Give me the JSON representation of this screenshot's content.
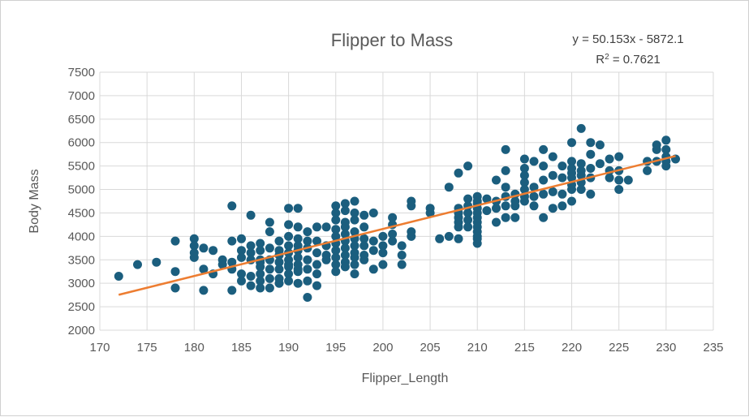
{
  "chart_data": {
    "type": "scatter",
    "title": "Flipper to Mass",
    "xlabel": "Flipper_Length",
    "ylabel": "Body Mass",
    "xlim": [
      170,
      235
    ],
    "ylim": [
      2000,
      7500
    ],
    "xticks": [
      170,
      175,
      180,
      185,
      190,
      195,
      200,
      205,
      210,
      215,
      220,
      225,
      230,
      235
    ],
    "yticks": [
      2000,
      2500,
      3000,
      3500,
      4000,
      4500,
      5000,
      5500,
      6000,
      6500,
      7000,
      7500
    ],
    "grid": true,
    "point_color": "#1b5e7e",
    "trendline": {
      "type": "linear",
      "slope": 50.153,
      "intercept": -5872.1,
      "x_range": [
        172,
        231
      ],
      "color": "#ed7d31",
      "equation": "y = 50.153x - 5872.1",
      "r2_label": "R",
      "r2_sup": "2",
      "r2_value": " = 0.7621"
    },
    "points": [
      [
        172,
        3150
      ],
      [
        174,
        3400
      ],
      [
        176,
        3450
      ],
      [
        178,
        3900
      ],
      [
        178,
        3250
      ],
      [
        178,
        2900
      ],
      [
        180,
        3950
      ],
      [
        180,
        3800
      ],
      [
        180,
        3650
      ],
      [
        180,
        3550
      ],
      [
        181,
        3750
      ],
      [
        181,
        3300
      ],
      [
        181,
        2850
      ],
      [
        182,
        3700
      ],
      [
        182,
        3200
      ],
      [
        183,
        3400
      ],
      [
        183,
        3500
      ],
      [
        184,
        4650
      ],
      [
        184,
        3900
      ],
      [
        184,
        3450
      ],
      [
        184,
        3300
      ],
      [
        184,
        2850
      ],
      [
        185,
        3950
      ],
      [
        185,
        3700
      ],
      [
        185,
        3200
      ],
      [
        185,
        3050
      ],
      [
        185,
        3550
      ],
      [
        186,
        4450
      ],
      [
        186,
        3800
      ],
      [
        186,
        3650
      ],
      [
        186,
        3500
      ],
      [
        186,
        3150
      ],
      [
        186,
        2950
      ],
      [
        187,
        3850
      ],
      [
        187,
        3700
      ],
      [
        187,
        3500
      ],
      [
        187,
        3450
      ],
      [
        187,
        3350
      ],
      [
        187,
        3200
      ],
      [
        187,
        3050
      ],
      [
        187,
        2900
      ],
      [
        188,
        4300
      ],
      [
        188,
        4100
      ],
      [
        188,
        3750
      ],
      [
        188,
        3500
      ],
      [
        188,
        3300
      ],
      [
        188,
        3100
      ],
      [
        188,
        2900
      ],
      [
        189,
        3900
      ],
      [
        189,
        3700
      ],
      [
        189,
        3600
      ],
      [
        189,
        3450
      ],
      [
        189,
        3300
      ],
      [
        189,
        3100
      ],
      [
        189,
        3000
      ],
      [
        190,
        4600
      ],
      [
        190,
        4250
      ],
      [
        190,
        4000
      ],
      [
        190,
        3800
      ],
      [
        190,
        3650
      ],
      [
        190,
        3500
      ],
      [
        190,
        3350
      ],
      [
        190,
        3200
      ],
      [
        190,
        3050
      ],
      [
        190,
        3400
      ],
      [
        191,
        4600
      ],
      [
        191,
        4200
      ],
      [
        191,
        3950
      ],
      [
        191,
        3800
      ],
      [
        191,
        3700
      ],
      [
        191,
        3550
      ],
      [
        191,
        3400
      ],
      [
        191,
        3250
      ],
      [
        191,
        3000
      ],
      [
        191,
        3300
      ],
      [
        192,
        4100
      ],
      [
        192,
        3900
      ],
      [
        192,
        3750
      ],
      [
        192,
        3500
      ],
      [
        192,
        3300
      ],
      [
        192,
        3050
      ],
      [
        192,
        2700
      ],
      [
        193,
        4200
      ],
      [
        193,
        3900
      ],
      [
        193,
        3650
      ],
      [
        193,
        3400
      ],
      [
        193,
        3200
      ],
      [
        193,
        2950
      ],
      [
        194,
        4200
      ],
      [
        194,
        3800
      ],
      [
        194,
        3600
      ],
      [
        194,
        3500
      ],
      [
        195,
        4650
      ],
      [
        195,
        4500
      ],
      [
        195,
        4350
      ],
      [
        195,
        4150
      ],
      [
        195,
        4000
      ],
      [
        195,
        3850
      ],
      [
        195,
        3700
      ],
      [
        195,
        3550
      ],
      [
        195,
        3400
      ],
      [
        195,
        3250
      ],
      [
        196,
        4700
      ],
      [
        196,
        4550
      ],
      [
        196,
        4300
      ],
      [
        196,
        4200
      ],
      [
        196,
        4050
      ],
      [
        196,
        3900
      ],
      [
        196,
        3750
      ],
      [
        196,
        3600
      ],
      [
        196,
        3450
      ],
      [
        196,
        3350
      ],
      [
        197,
        4750
      ],
      [
        197,
        4500
      ],
      [
        197,
        4350
      ],
      [
        197,
        4100
      ],
      [
        197,
        3950
      ],
      [
        197,
        3800
      ],
      [
        197,
        3650
      ],
      [
        197,
        3550
      ],
      [
        197,
        3400
      ],
      [
        197,
        3200
      ],
      [
        198,
        4450
      ],
      [
        198,
        4200
      ],
      [
        198,
        3950
      ],
      [
        198,
        3800
      ],
      [
        198,
        3600
      ],
      [
        198,
        3500
      ],
      [
        199,
        4500
      ],
      [
        199,
        3900
      ],
      [
        199,
        3700
      ],
      [
        199,
        3300
      ],
      [
        200,
        4000
      ],
      [
        200,
        3800
      ],
      [
        200,
        3650
      ],
      [
        200,
        3400
      ],
      [
        201,
        4400
      ],
      [
        201,
        4250
      ],
      [
        201,
        4050
      ],
      [
        201,
        3900
      ],
      [
        202,
        3800
      ],
      [
        202,
        3600
      ],
      [
        202,
        3400
      ],
      [
        203,
        4750
      ],
      [
        203,
        4650
      ],
      [
        203,
        4100
      ],
      [
        203,
        4000
      ],
      [
        205,
        4600
      ],
      [
        205,
        4500
      ],
      [
        206,
        3950
      ],
      [
        207,
        5050
      ],
      [
        207,
        4000
      ],
      [
        208,
        5350
      ],
      [
        208,
        4600
      ],
      [
        208,
        4500
      ],
      [
        208,
        4400
      ],
      [
        208,
        4300
      ],
      [
        208,
        4200
      ],
      [
        208,
        3950
      ],
      [
        209,
        5500
      ],
      [
        209,
        4800
      ],
      [
        209,
        4650
      ],
      [
        209,
        4500
      ],
      [
        209,
        4350
      ],
      [
        209,
        4200
      ],
      [
        210,
        4850
      ],
      [
        210,
        4700
      ],
      [
        210,
        4600
      ],
      [
        210,
        4500
      ],
      [
        210,
        4400
      ],
      [
        210,
        4300
      ],
      [
        210,
        4200
      ],
      [
        210,
        4100
      ],
      [
        210,
        4000
      ],
      [
        210,
        3950
      ],
      [
        210,
        3850
      ],
      [
        210,
        4750
      ],
      [
        211,
        4800
      ],
      [
        211,
        4550
      ],
      [
        212,
        5200
      ],
      [
        212,
        4750
      ],
      [
        212,
        4600
      ],
      [
        212,
        4300
      ],
      [
        213,
        5850
      ],
      [
        213,
        5400
      ],
      [
        213,
        5050
      ],
      [
        213,
        4850
      ],
      [
        213,
        4650
      ],
      [
        213,
        4400
      ],
      [
        214,
        4900
      ],
      [
        214,
        4750
      ],
      [
        214,
        4650
      ],
      [
        214,
        4400
      ],
      [
        215,
        5650
      ],
      [
        215,
        5450
      ],
      [
        215,
        5300
      ],
      [
        215,
        5150
      ],
      [
        215,
        5000
      ],
      [
        215,
        4850
      ],
      [
        215,
        4750
      ],
      [
        216,
        5600
      ],
      [
        216,
        5050
      ],
      [
        216,
        4850
      ],
      [
        216,
        4650
      ],
      [
        217,
        5850
      ],
      [
        217,
        5500
      ],
      [
        217,
        5200
      ],
      [
        217,
        4900
      ],
      [
        217,
        4400
      ],
      [
        218,
        5700
      ],
      [
        218,
        5300
      ],
      [
        218,
        4950
      ],
      [
        218,
        4600
      ],
      [
        219,
        5500
      ],
      [
        219,
        5250
      ],
      [
        219,
        4900
      ],
      [
        219,
        4650
      ],
      [
        220,
        6000
      ],
      [
        220,
        5600
      ],
      [
        220,
        5450
      ],
      [
        220,
        5350
      ],
      [
        220,
        5250
      ],
      [
        220,
        5100
      ],
      [
        220,
        5000
      ],
      [
        220,
        4750
      ],
      [
        221,
        6300
      ],
      [
        221,
        5550
      ],
      [
        221,
        5400
      ],
      [
        221,
        5300
      ],
      [
        221,
        5150
      ],
      [
        221,
        5000
      ],
      [
        222,
        6000
      ],
      [
        222,
        5750
      ],
      [
        222,
        5450
      ],
      [
        222,
        5250
      ],
      [
        222,
        4900
      ],
      [
        223,
        5950
      ],
      [
        223,
        5550
      ],
      [
        224,
        5650
      ],
      [
        224,
        5400
      ],
      [
        224,
        5250
      ],
      [
        225,
        5700
      ],
      [
        225,
        5400
      ],
      [
        225,
        5200
      ],
      [
        225,
        5000
      ],
      [
        226,
        5200
      ],
      [
        228,
        5600
      ],
      [
        228,
        5400
      ],
      [
        229,
        5950
      ],
      [
        229,
        5850
      ],
      [
        229,
        5600
      ],
      [
        230,
        6050
      ],
      [
        230,
        5850
      ],
      [
        230,
        5700
      ],
      [
        230,
        5600
      ],
      [
        230,
        5500
      ],
      [
        231,
        5650
      ]
    ]
  }
}
